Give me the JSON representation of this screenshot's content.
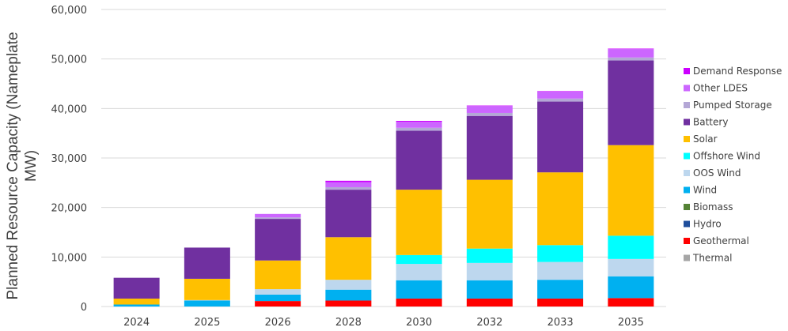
{
  "chart_data": {
    "type": "bar",
    "stacked": true,
    "title": "",
    "xlabel": "",
    "ylabel": "Planned Resource Capacity (Nameplate MW)",
    "ylim": [
      0,
      60000
    ],
    "yticks": [
      0,
      10000,
      20000,
      30000,
      40000,
      50000,
      60000
    ],
    "ytick_labels": [
      "0",
      "10,000",
      "20,000",
      "30,000",
      "40,000",
      "50,000",
      "60,000"
    ],
    "grid": true,
    "legend_position": "right",
    "categories": [
      "2024",
      "2025",
      "2026",
      "2028",
      "2030",
      "2032",
      "2033",
      "2035"
    ],
    "series": [
      {
        "name": "Thermal",
        "color": "#a6a6a6",
        "values": [
          0,
          0,
          0,
          0,
          0,
          0,
          0,
          0
        ]
      },
      {
        "name": "Geothermal",
        "color": "#ff0000",
        "values": [
          0,
          0,
          1100,
          1200,
          1600,
          1600,
          1600,
          1700
        ]
      },
      {
        "name": "Hydro",
        "color": "#1f4e9c",
        "values": [
          0,
          0,
          0,
          0,
          0,
          0,
          0,
          0
        ]
      },
      {
        "name": "Biomass",
        "color": "#548235",
        "values": [
          0,
          0,
          0,
          0,
          0,
          0,
          0,
          0
        ]
      },
      {
        "name": "Wind",
        "color": "#00b0f0",
        "values": [
          400,
          1200,
          1300,
          2200,
          3700,
          3700,
          3800,
          4400
        ]
      },
      {
        "name": "OOS Wind",
        "color": "#bdd7ee",
        "values": [
          0,
          100,
          1100,
          2000,
          3300,
          3500,
          3600,
          3500
        ]
      },
      {
        "name": "Offshore Wind",
        "color": "#00ffff",
        "values": [
          0,
          0,
          0,
          0,
          1800,
          2900,
          3400,
          4700
        ]
      },
      {
        "name": "Solar",
        "color": "#ffc000",
        "values": [
          1200,
          4300,
          5800,
          8600,
          13200,
          13900,
          14700,
          18300
        ]
      },
      {
        "name": "Battery",
        "color": "#7030a0",
        "values": [
          4200,
          6300,
          8400,
          9600,
          11900,
          12900,
          14300,
          17100
        ]
      },
      {
        "name": "Pumped Storage",
        "color": "#b4a7d6",
        "values": [
          0,
          0,
          300,
          500,
          600,
          600,
          600,
          600
        ]
      },
      {
        "name": "Other LDES",
        "color": "#cc66ff",
        "values": [
          0,
          0,
          700,
          1000,
          1200,
          1400,
          1400,
          1700
        ]
      },
      {
        "name": "Demand Response",
        "color": "#cc00ff",
        "values": [
          0,
          0,
          0,
          300,
          200,
          100,
          100,
          100
        ]
      }
    ]
  }
}
